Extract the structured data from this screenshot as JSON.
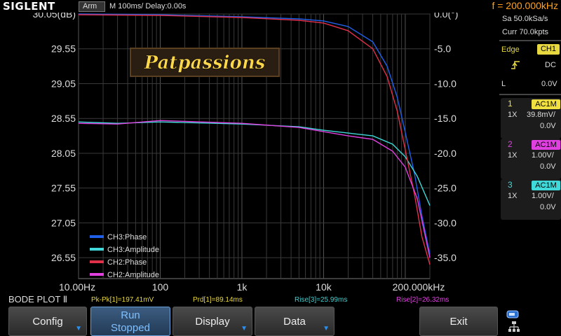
{
  "topbar": {
    "logo": "SIGLENT",
    "mode": "Arm",
    "timebase": "M 100ms/  Delay:0.00s",
    "frequency": "f = 200.000kHz"
  },
  "watermark": "Patpassions",
  "right_panel": {
    "sample_rate": "Sa 50.0kSa/s",
    "memory": "Curr 70.0kpts",
    "trigger": {
      "type": "Edge",
      "source": "CH1",
      "coupling": "DC",
      "level_label": "L",
      "level": "0.0V"
    },
    "channels": [
      {
        "num": "1",
        "coupling": "AC1M",
        "probe": "1X",
        "scale": "39.8mV/",
        "offset": "0.0V",
        "color": "#f0e040"
      },
      {
        "num": "2",
        "coupling": "AC1M",
        "probe": "1X",
        "scale": "1.00V/",
        "offset": "0.0V",
        "color": "#e040e0"
      },
      {
        "num": "3",
        "coupling": "AC1M",
        "probe": "1X",
        "scale": "1.00V/",
        "offset": "0.0V",
        "color": "#40d8d8"
      }
    ]
  },
  "measurements": {
    "title": "BODE PLOT Ⅱ",
    "items": [
      {
        "text": "Pk-Pk[1]=197.41mV",
        "color": "#e8d840"
      },
      {
        "text": "Prd[1]=89.14ms",
        "color": "#e8d840"
      },
      {
        "text": "Rise[3]=25.99ms",
        "color": "#40d0d0"
      },
      {
        "text": "Rise[2]=26.32ms",
        "color": "#e040e0"
      }
    ]
  },
  "menu": {
    "config": "Config",
    "run_line1": "Run",
    "run_line2": "Stopped",
    "display": "Display",
    "data": "Data",
    "exit": "Exit"
  },
  "chart_data": {
    "type": "line",
    "x_scale": "log",
    "xlim": [
      10,
      200000
    ],
    "x_ticks": [
      "10.00Hz",
      "100",
      "1k",
      "10k",
      "200.000kHz"
    ],
    "y_left_label": "(dB)",
    "y_left_ticks": [
      "30.05(dB)",
      "29.55",
      "29.05",
      "28.55",
      "28.05",
      "27.55",
      "27.05",
      "26.55"
    ],
    "y_left_lim": [
      26.25,
      30.05
    ],
    "y_right_ticks": [
      "0.0(°)",
      "-5.0",
      "-10.0",
      "-15.0",
      "-20.0",
      "-25.0",
      "-30.0",
      "-35.0"
    ],
    "y_right_lim": [
      -38,
      0
    ],
    "legend_position": "bottom-left",
    "series": [
      {
        "name": "CH3:Phase",
        "color": "#2060e8",
        "axis": "right",
        "x": [
          10,
          100,
          1000,
          5000,
          10000,
          20000,
          40000,
          60000,
          80000,
          100000,
          130000,
          160000,
          200000
        ],
        "y": [
          0,
          -0.1,
          -0.4,
          -0.7,
          -1.0,
          -1.8,
          -4.0,
          -7.5,
          -12.0,
          -17.0,
          -23.0,
          -29.0,
          -34.5
        ]
      },
      {
        "name": "CH3:Amplitude",
        "color": "#40d8d8",
        "axis": "left",
        "x": [
          10,
          30,
          100,
          1000,
          5000,
          10000,
          20000,
          40000,
          70000,
          100000,
          140000,
          200000
        ],
        "y": [
          28.5,
          28.48,
          28.5,
          28.47,
          28.43,
          28.38,
          28.34,
          28.3,
          28.18,
          28.0,
          27.72,
          27.3
        ]
      },
      {
        "name": "CH2:Phase",
        "color": "#e0304a",
        "axis": "right",
        "x": [
          10,
          100,
          1000,
          5000,
          10000,
          20000,
          40000,
          60000,
          80000,
          100000,
          130000,
          160000,
          200000
        ],
        "y": [
          -0.1,
          -0.2,
          -0.5,
          -0.9,
          -1.3,
          -2.4,
          -5.0,
          -9.0,
          -14.0,
          -19.5,
          -26.0,
          -32.0,
          -36.0
        ]
      },
      {
        "name": "CH2:Amplitude",
        "color": "#e040e0",
        "axis": "left",
        "x": [
          10,
          30,
          100,
          1000,
          5000,
          10000,
          20000,
          40000,
          70000,
          100000,
          140000,
          200000
        ],
        "y": [
          28.48,
          28.47,
          28.52,
          28.48,
          28.42,
          28.36,
          28.3,
          28.25,
          28.08,
          27.85,
          27.4,
          26.55
        ]
      }
    ]
  }
}
